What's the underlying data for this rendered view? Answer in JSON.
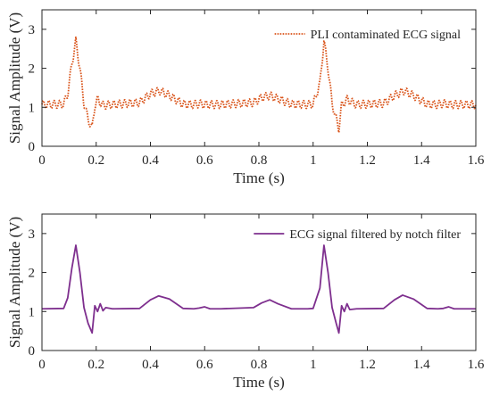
{
  "chart_data": [
    {
      "type": "line",
      "title": "",
      "xlabel": "Time (s)",
      "ylabel": "Signal Amplitude (V)",
      "xlim": [
        0,
        1.6
      ],
      "ylim": [
        0,
        3.5
      ],
      "xticks": [
        0,
        0.2,
        0.4,
        0.6,
        0.8,
        1,
        1.2,
        1.4,
        1.6
      ],
      "xtick_labels": [
        "0",
        "0.2",
        "0.4",
        "0.6",
        "0.8",
        "1",
        "1.2",
        "1.4",
        "1.6"
      ],
      "yticks": [
        0,
        1,
        2,
        3
      ],
      "ytick_labels": [
        "0",
        "1",
        "2",
        "3"
      ],
      "grid": false,
      "legend_position": "top-right",
      "series": [
        {
          "name": "PLI contaminated ECG signal",
          "color": "#D95319",
          "line_style": "dotted",
          "powerline_ripple": {
            "frequency_hz": 50,
            "amplitude_v": 0.1
          },
          "x": [
            0,
            0.08,
            0.095,
            0.11,
            0.125,
            0.14,
            0.155,
            0.17,
            0.185,
            0.195,
            0.205,
            0.225,
            0.26,
            0.36,
            0.4,
            0.435,
            0.47,
            0.52,
            0.56,
            0.58,
            0.6,
            0.62,
            0.66,
            0.78,
            0.81,
            0.84,
            0.87,
            0.92,
            0.98,
            1.0,
            1.025,
            1.04,
            1.055,
            1.07,
            1.085,
            1.095,
            1.105,
            1.125,
            1.16,
            1.26,
            1.3,
            1.335,
            1.37,
            1.42,
            1.46,
            1.48,
            1.5,
            1.52,
            1.56,
            1.6
          ],
          "y": [
            1.07,
            1.08,
            1.35,
            2.1,
            2.7,
            2.0,
            1.1,
            0.7,
            0.45,
            1.05,
            1.2,
            1.05,
            1.07,
            1.12,
            1.35,
            1.42,
            1.3,
            1.08,
            1.07,
            1.09,
            1.07,
            1.07,
            1.07,
            1.12,
            1.25,
            1.3,
            1.22,
            1.08,
            1.07,
            1.08,
            1.6,
            2.7,
            2.0,
            1.1,
            0.7,
            0.45,
            1.05,
            1.2,
            1.07,
            1.1,
            1.3,
            1.42,
            1.3,
            1.08,
            1.07,
            1.1,
            1.07,
            1.07,
            1.07,
            1.07
          ]
        }
      ]
    },
    {
      "type": "line",
      "title": "",
      "xlabel": "Time (s)",
      "ylabel": "Signal Amplitude (V)",
      "xlim": [
        0,
        1.6
      ],
      "ylim": [
        0,
        3.5
      ],
      "xticks": [
        0,
        0.2,
        0.4,
        0.6,
        0.8,
        1,
        1.2,
        1.4,
        1.6
      ],
      "xtick_labels": [
        "0",
        "0.2",
        "0.4",
        "0.6",
        "0.8",
        "1",
        "1.2",
        "1.4",
        "1.6"
      ],
      "yticks": [
        0,
        1,
        2,
        3
      ],
      "ytick_labels": [
        "0",
        "1",
        "2",
        "3"
      ],
      "grid": false,
      "legend_position": "top-right",
      "series": [
        {
          "name": "ECG signal filtered by notch filter",
          "color": "#7E2F8E",
          "line_style": "solid",
          "x": [
            0,
            0.08,
            0.095,
            0.11,
            0.125,
            0.14,
            0.155,
            0.17,
            0.185,
            0.195,
            0.205,
            0.215,
            0.225,
            0.235,
            0.26,
            0.36,
            0.4,
            0.43,
            0.47,
            0.52,
            0.56,
            0.58,
            0.6,
            0.62,
            0.66,
            0.78,
            0.81,
            0.84,
            0.87,
            0.92,
            0.98,
            1.0,
            1.025,
            1.04,
            1.055,
            1.07,
            1.085,
            1.095,
            1.105,
            1.115,
            1.125,
            1.135,
            1.16,
            1.26,
            1.3,
            1.33,
            1.37,
            1.42,
            1.46,
            1.48,
            1.5,
            1.52,
            1.56,
            1.6
          ],
          "y": [
            1.07,
            1.08,
            1.35,
            2.1,
            2.7,
            2.0,
            1.1,
            0.7,
            0.45,
            1.15,
            1.0,
            1.2,
            1.02,
            1.1,
            1.07,
            1.08,
            1.3,
            1.4,
            1.32,
            1.08,
            1.07,
            1.09,
            1.12,
            1.07,
            1.07,
            1.1,
            1.22,
            1.3,
            1.2,
            1.07,
            1.07,
            1.08,
            1.6,
            2.7,
            2.0,
            1.1,
            0.7,
            0.45,
            1.15,
            1.0,
            1.2,
            1.05,
            1.07,
            1.08,
            1.3,
            1.42,
            1.32,
            1.08,
            1.07,
            1.08,
            1.12,
            1.07,
            1.07,
            1.07
          ]
        }
      ]
    }
  ]
}
